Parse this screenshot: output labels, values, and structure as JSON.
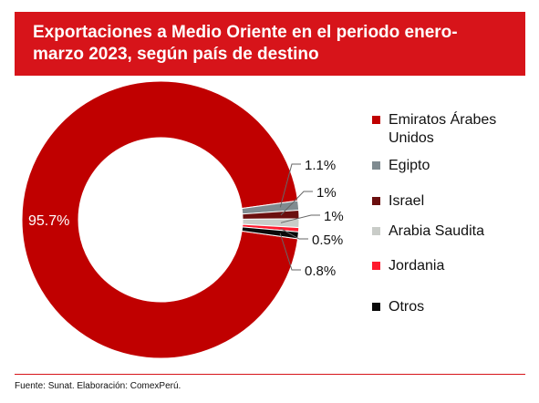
{
  "header": {
    "title": "Exportaciones a Medio Oriente en el periodo enero-marzo 2023, según país de destino"
  },
  "chart_data": {
    "type": "pie",
    "donut": true,
    "title": "Exportaciones a Medio Oriente en el periodo enero-marzo 2023, según país de destino",
    "categories": [
      "Emiratos Árabes Unidos",
      "Egipto",
      "Israel",
      "Arabia Saudita",
      "Jordania",
      "Otros"
    ],
    "values": [
      95.7,
      1.1,
      1,
      1,
      0.5,
      0.8
    ],
    "labels": [
      "95.7%",
      "1.1%",
      "1%",
      "1%",
      "0.5%",
      "0.8%"
    ],
    "colors": [
      "#c00000",
      "#7f8b90",
      "#6b0f0f",
      "#c9ccc8",
      "#ff1a2e",
      "#0a0a0a"
    ],
    "legend_position": "right"
  },
  "footer": {
    "source": "Fuente: Sunat. Elaboración: ComexPerú."
  }
}
